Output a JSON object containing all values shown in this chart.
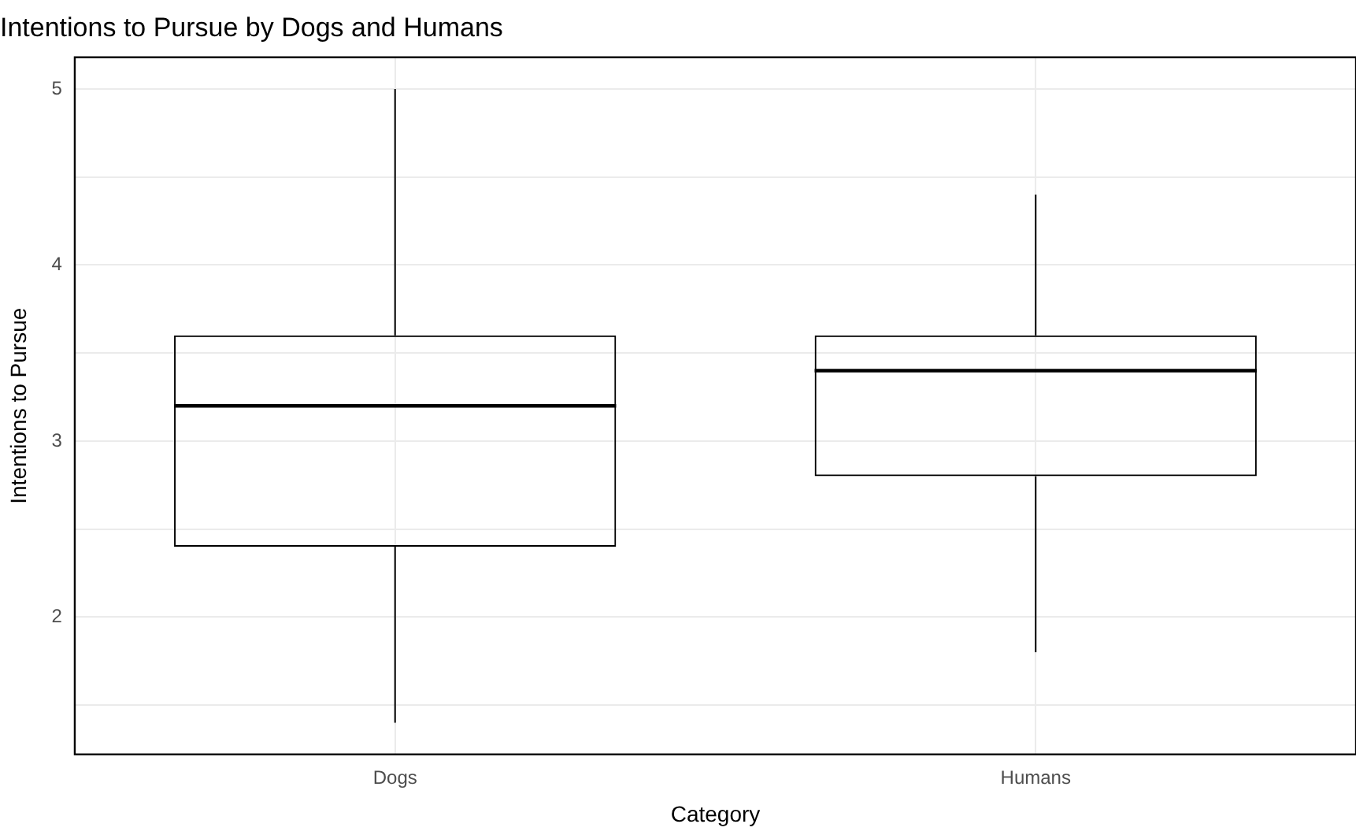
{
  "chart_data": {
    "type": "box",
    "title": "Intentions to Pursue by Dogs and Humans",
    "xlabel": "Category",
    "ylabel": "Intentions to Pursue",
    "categories": [
      "Dogs",
      "Humans"
    ],
    "boxes": [
      {
        "low": 1.4,
        "q1": 2.4,
        "median": 3.2,
        "q3": 3.6,
        "high": 5
      },
      {
        "low": 1.8,
        "q1": 2.8,
        "median": 3.4,
        "q3": 3.6,
        "high": 4.4
      }
    ],
    "ylim": [
      1.22,
      5.18
    ],
    "yticks": [
      {
        "value": 1.5,
        "label": null
      },
      2,
      {
        "value": 2.5,
        "label": null
      },
      3,
      {
        "value": 3.5,
        "label": null
      },
      4,
      {
        "value": 4.5,
        "label": null
      },
      5
    ],
    "grid": true
  }
}
